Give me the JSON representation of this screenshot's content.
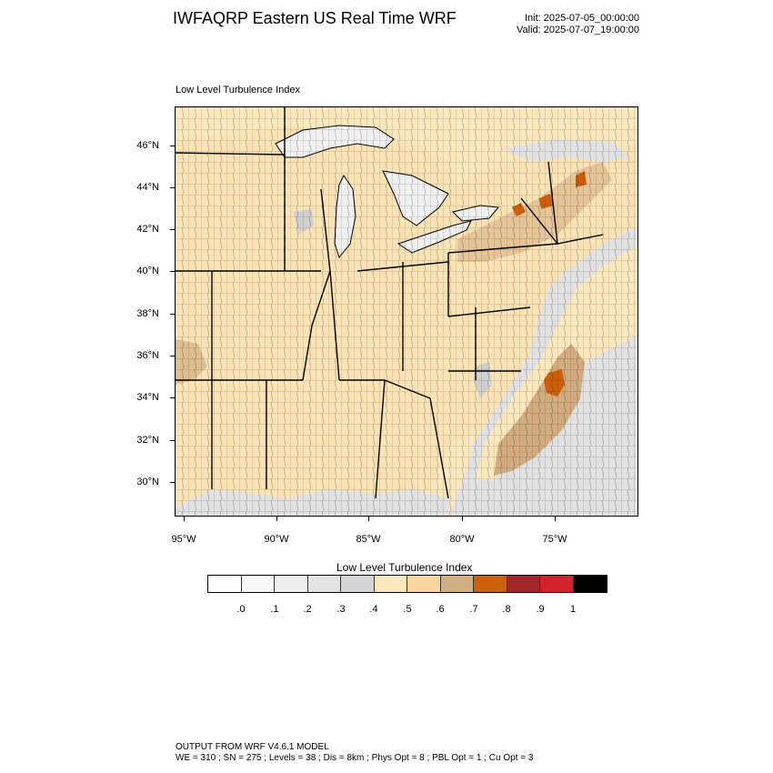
{
  "header": {
    "title": "IWFAQRP Eastern US Real Time WRF",
    "init": "Init: 2025-07-05_00:00:00",
    "valid": "Valid: 2025-07-07_19:00:00"
  },
  "map": {
    "label": "Low Level Turbulence Index",
    "lat_labels": [
      "46°N",
      "44°N",
      "42°N",
      "40°N",
      "38°N",
      "36°N",
      "34°N",
      "32°N",
      "30°N"
    ],
    "lon_labels": [
      "95°W",
      "90°W",
      "85°W",
      "80°W",
      "75°W"
    ],
    "colors": {
      "base": "#fce3b5",
      "light_orange": "#fbd89c",
      "tan": "#d2ac7e",
      "dark_orange": "#cc5f0a",
      "water": "#f0f0f0",
      "light_gray": "#e1e1e1",
      "mid_gray": "#cfcfcf",
      "borders": "#000000"
    }
  },
  "colorbar": {
    "title": "Low Level Turbulence Index",
    "colors": [
      "#ffffff",
      "#f8f8f8",
      "#efefef",
      "#e3e3e3",
      "#d4d4d4",
      "#fde7bd",
      "#fbd59e",
      "#d2ae82",
      "#cc6109",
      "#a3262a",
      "#d2232a",
      "#000000"
    ],
    "labels": [
      ".0",
      ".1",
      ".2",
      ".3",
      ".4",
      ".5",
      ".6",
      ".7",
      ".8",
      ".9",
      "1"
    ]
  },
  "footer": {
    "line1": "OUTPUT FROM WRF V4.6.1 MODEL",
    "line2": "WE = 310 ; SN = 275 ; Levels = 38 ; Dis = 8km ; Phys Opt = 8 ; PBL Opt = 1 ; Cu Opt = 3"
  }
}
